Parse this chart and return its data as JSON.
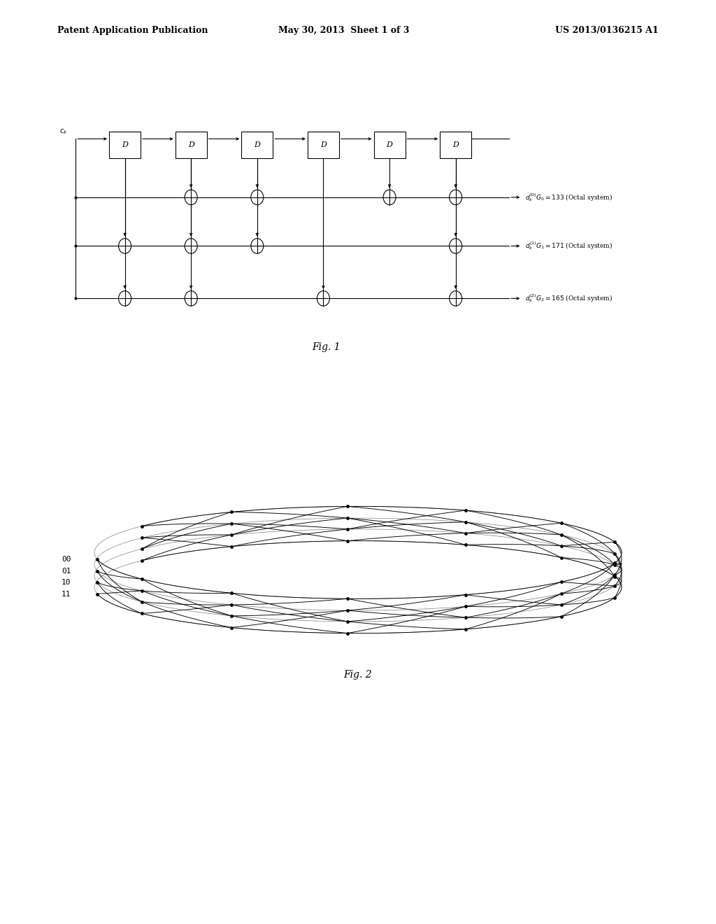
{
  "background_color": "#ffffff",
  "header": {
    "left": "Patent Application Publication",
    "center": "May 30, 2013  Sheet 1 of 3",
    "right": "US 2013/0136215 A1"
  },
  "fig1_label": "Fig. 1",
  "fig2_label": "Fig. 2",
  "fig2_states": [
    "00",
    "01",
    "10",
    "11"
  ],
  "line_color": "#000000",
  "text_color": "#000000"
}
